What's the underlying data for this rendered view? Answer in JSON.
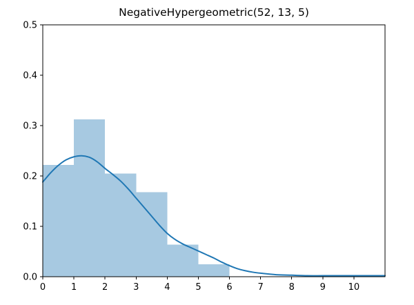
{
  "figure": {
    "title": "NegativeHypergeometric(52, 13, 5)"
  },
  "chart_data": {
    "type": "bar",
    "subtype": "histogram_with_kde_overlay",
    "title": "NegativeHypergeometric(52, 13, 5)",
    "xlabel": "",
    "ylabel": "",
    "xlim": [
      0,
      11
    ],
    "ylim": [
      0,
      0.5
    ],
    "grid": false,
    "legend": false,
    "x_ticks": [
      0,
      1,
      2,
      3,
      4,
      5,
      6,
      7,
      8,
      9,
      10
    ],
    "x_tick_labels": [
      "0",
      "1",
      "2",
      "3",
      "4",
      "5",
      "6",
      "7",
      "8",
      "9",
      "10"
    ],
    "y_ticks": [
      0,
      0.1,
      0.2,
      0.3,
      0.4,
      0.5
    ],
    "y_tick_labels": [
      "0.0",
      "0.1",
      "0.2",
      "0.3",
      "0.4",
      "0.5"
    ],
    "histogram": {
      "bin_edges": [
        0,
        1,
        2,
        3,
        4,
        5,
        6
      ],
      "densities": [
        0.222,
        0.312,
        0.205,
        0.168,
        0.064,
        0.025
      ]
    },
    "kde": {
      "x": [
        0,
        0.25,
        0.5,
        0.75,
        1,
        1.25,
        1.5,
        1.75,
        2,
        2.25,
        2.5,
        2.75,
        3,
        3.25,
        3.5,
        3.75,
        4,
        4.25,
        4.5,
        4.75,
        5,
        5.25,
        5.5,
        5.75,
        6,
        6.25,
        6.5,
        6.75,
        7,
        7.5,
        8,
        8.5,
        9,
        9.5,
        10,
        10.5,
        11
      ],
      "y": [
        0.188,
        0.206,
        0.221,
        0.232,
        0.238,
        0.24,
        0.237,
        0.228,
        0.215,
        0.203,
        0.19,
        0.174,
        0.156,
        0.138,
        0.12,
        0.102,
        0.086,
        0.074,
        0.065,
        0.058,
        0.051,
        0.044,
        0.037,
        0.029,
        0.022,
        0.016,
        0.012,
        0.009,
        0.007,
        0.004,
        0.003,
        0.002,
        0.002,
        0.002,
        0.002,
        0.002,
        0.002
      ]
    },
    "colors": {
      "bar_fill": "#a7c9e1",
      "kde_line": "#1f77b4",
      "axis": "#000000",
      "text": "#000000",
      "background": "#ffffff"
    }
  }
}
